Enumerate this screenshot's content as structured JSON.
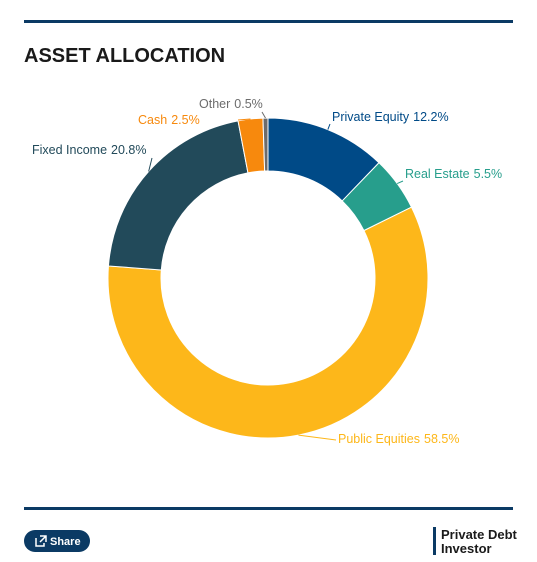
{
  "chart_data": {
    "type": "donut",
    "title": "ASSET ALLOCATION",
    "categories": [
      "Private Equity",
      "Real Estate",
      "Public Equities",
      "Fixed Income",
      "Cash",
      "Other"
    ],
    "values": [
      12.2,
      5.5,
      58.5,
      20.8,
      2.5,
      0.5
    ],
    "value_labels": [
      "12.2%",
      "5.5%",
      "58.5%",
      "20.8%",
      "2.5%",
      "0.5%"
    ],
    "colors": [
      "#004a87",
      "#279e8c",
      "#fdb71a",
      "#224a5a",
      "#f7890d",
      "#6c6c6c"
    ]
  },
  "footer": {
    "share": "Share",
    "logo": [
      "Private Debt",
      "Investor"
    ]
  }
}
